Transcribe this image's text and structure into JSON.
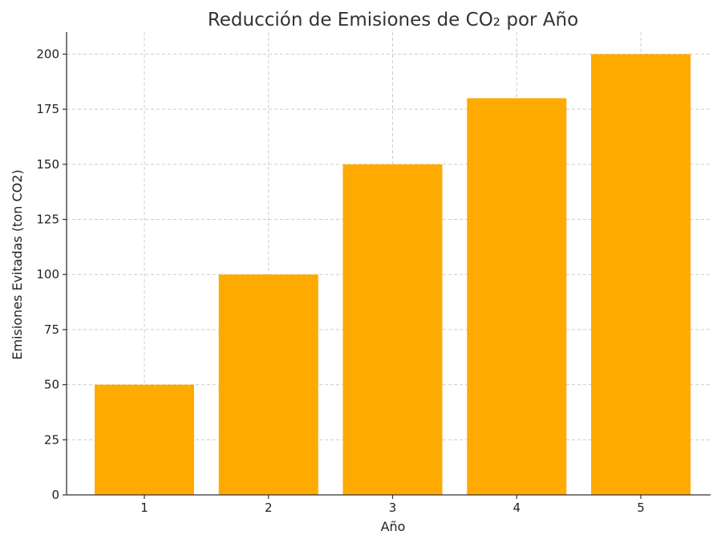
{
  "chart_data": {
    "type": "bar",
    "title": "Reducción de Emisiones de CO₂ por Año",
    "xlabel": "Año",
    "ylabel": "Emisiones Evitadas (ton CO2)",
    "categories": [
      "1",
      "2",
      "3",
      "4",
      "5"
    ],
    "values": [
      50,
      100,
      150,
      180,
      200
    ],
    "ylim": [
      0,
      210
    ],
    "yticks": [
      0,
      25,
      50,
      75,
      100,
      125,
      150,
      175,
      200
    ],
    "bar_color": "#FFAA00",
    "grid": true,
    "legend": false
  }
}
